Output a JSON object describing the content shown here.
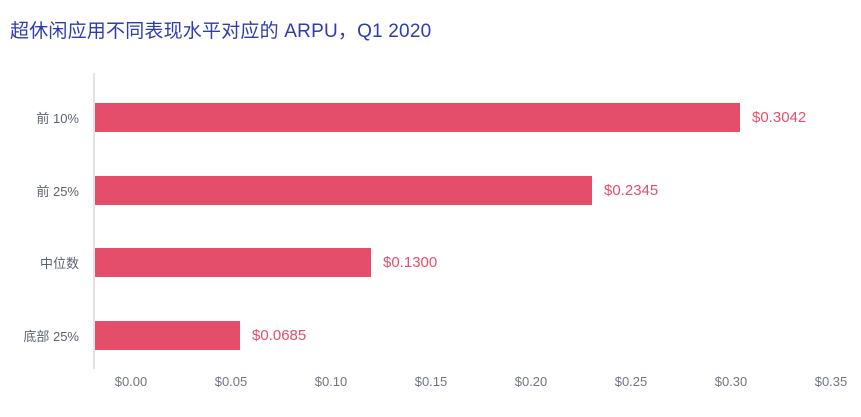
{
  "chart_data": {
    "type": "bar",
    "orientation": "horizontal",
    "title": "超休闲应用不同表现水平对应的 ARPU，Q1 2020",
    "categories": [
      "前 10%",
      "前 25%",
      "中位数",
      "底部 25%"
    ],
    "values": [
      0.3042,
      0.2345,
      0.13,
      0.0685
    ],
    "value_labels": [
      "$0.3042",
      "$0.2345",
      "$0.1300",
      "$0.0685"
    ],
    "x_tick_labels": [
      "$0.00",
      "$0.05",
      "$0.10",
      "$0.15",
      "$0.20",
      "$0.25",
      "$0.30",
      "$0.35"
    ],
    "xlim": [
      0,
      0.35
    ],
    "xlabel": "",
    "ylabel": "",
    "grid": false,
    "legend": "none",
    "colors": {
      "bar": "#E54E6B",
      "value_label": "#E54E6B",
      "title": "#2F3BB0",
      "category_label": "#5C6370",
      "tick_label": "#6F7585",
      "axis_line": "#E3E4E8",
      "background": "#FFFFFF"
    }
  }
}
